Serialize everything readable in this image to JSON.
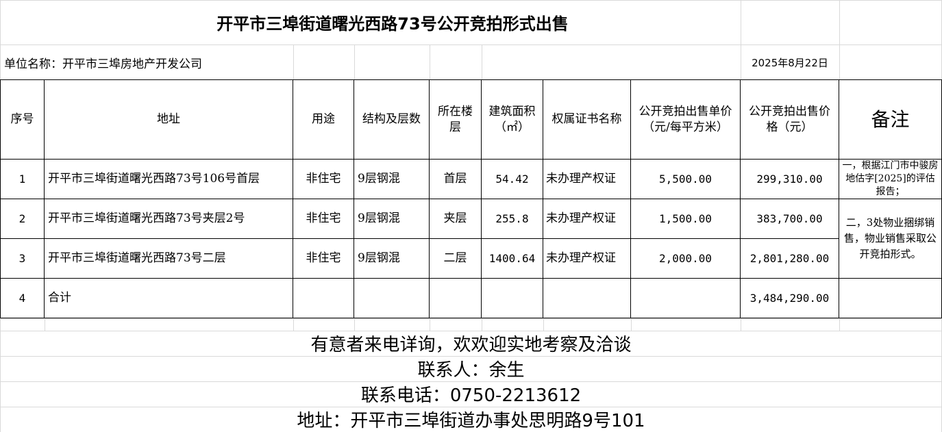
{
  "title": "开平市三埠街道曙光西路73号公开竞拍形式出售",
  "unit": "单位名称：开平市三埠房地产开发公司",
  "date": "2025年8月22日",
  "headers": {
    "no": "序号",
    "address": "地址",
    "use": "用途",
    "structure": "结构及层数",
    "floor": "所在楼层",
    "area": "建筑面积（㎡）",
    "cert": "权属证书名称",
    "unit_price": "公开竞拍出售单价（元/每平方米）",
    "price": "公开竞拍出售价格（元）",
    "remark": "备注"
  },
  "rows": [
    {
      "no": "1",
      "address": "开平市三埠街道曙光西路73号106号首层",
      "use": "非住宅",
      "structure": "9层钢混",
      "floor": "首层",
      "area": "54.42",
      "cert": "未办理产权证",
      "unit_price": "5,500.00",
      "price": "299,310.00"
    },
    {
      "no": "2",
      "address": "开平市三埠街道曙光西路73号夹层2号",
      "use": "非住宅",
      "structure": "9层钢混",
      "floor": "夹层",
      "area": "255.8",
      "cert": "未办理产权证",
      "unit_price": "1,500.00",
      "price": "383,700.00"
    },
    {
      "no": "3",
      "address": "开平市三埠街道曙光西路73号二层",
      "use": "非住宅",
      "structure": "9层钢混",
      "floor": "二层",
      "area": "1400.64",
      "cert": "未办理产权证",
      "unit_price": "2,000.00",
      "price": "2,801,280.00"
    },
    {
      "no": "4",
      "address": "合计",
      "price": "3,484,290.00"
    }
  ],
  "remarks": [
    "一，根据江门市中骏房地估字[2025]的评估报告；",
    "二，3处物业捆绑销售，物业销售采取公开竞拍形式。"
  ],
  "footer": [
    "有意者来电详询，欢欢迎实地考察及洽谈",
    "联系人：余生",
    "联系电话：0750-2213612",
    "地址：开平市三埠街道办事处思明路9号101"
  ]
}
